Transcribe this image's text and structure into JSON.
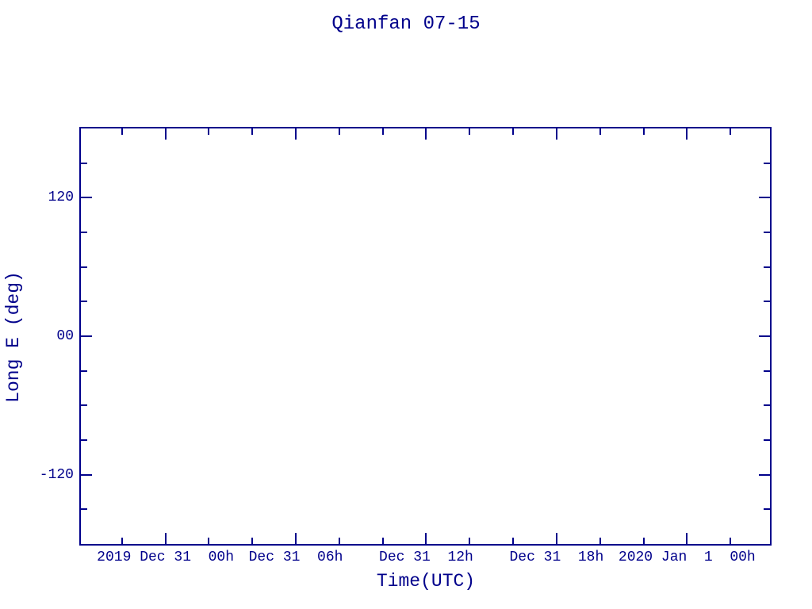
{
  "colors": {
    "accent": "#00008B",
    "background": "#ffffff"
  },
  "chart_data": {
    "type": "line",
    "title": "Qianfan 07-15",
    "xlabel": "Time(UTC)",
    "ylabel": "Long E (deg)",
    "legend": null,
    "grid": false,
    "series": [],
    "x_axis": {
      "unit_hours_since": "2019 Dec 31 00h UTC",
      "range": [
        -3.89,
        27.82
      ],
      "major_ticks": [
        {
          "value": 0,
          "label": "2019 Dec 31  00h"
        },
        {
          "value": 6,
          "label": "Dec 31  06h"
        },
        {
          "value": 12,
          "label": "Dec 31  12h"
        },
        {
          "value": 18,
          "label": "Dec 31  18h"
        },
        {
          "value": 24,
          "label": "2020 Jan  1  00h"
        }
      ],
      "minor_tick_values": [
        -2,
        2,
        4,
        8,
        10,
        14,
        16,
        20,
        22,
        26
      ]
    },
    "y_axis": {
      "range": [
        -180,
        180
      ],
      "major_ticks": [
        {
          "value": 120,
          "label": "120"
        },
        {
          "value": 0,
          "label": "00"
        },
        {
          "value": -120,
          "label": "-120"
        }
      ],
      "minor_tick_values": [
        150,
        90,
        60,
        30,
        -30,
        -60,
        -90,
        -150
      ]
    }
  }
}
